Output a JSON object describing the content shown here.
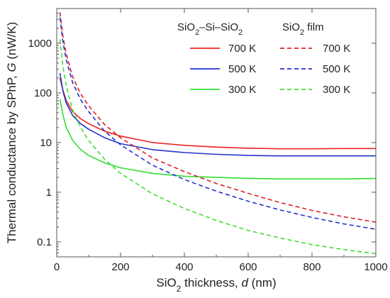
{
  "chart_data": {
    "type": "line",
    "xlabel": {
      "prefix": "SiO",
      "sub": "2",
      "mid": " thickness, ",
      "var": "d",
      "suffix": " (nm)"
    },
    "ylabel": {
      "prefix": "Thermal conductance  by  SPhP, ",
      "var": "G",
      "suffix": " (nW/K)"
    },
    "xlim": [
      0,
      1000
    ],
    "ylim": [
      0.05,
      5000
    ],
    "yscale": "log",
    "x_ticks": [
      0,
      200,
      400,
      600,
      800,
      1000
    ],
    "x_tick_labels": [
      "0",
      "200",
      "400",
      "600",
      "800",
      "1000"
    ],
    "y_ticks": [
      0.1,
      1,
      10,
      100,
      1000
    ],
    "y_tick_labels": [
      "0.1",
      "1",
      "10",
      "100",
      "1000"
    ],
    "grid": false,
    "legend": {
      "placement": "top-right",
      "groups": [
        {
          "title_parts": [
            "SiO",
            "2",
            "–Si–SiO",
            "2"
          ],
          "style": "solid"
        },
        {
          "title_parts": [
            "SiO",
            "2",
            " film",
            ""
          ],
          "style": "dashed"
        }
      ],
      "entries": [
        "700 K",
        "500 K",
        "300 K"
      ]
    },
    "series": [
      {
        "name": "700 K",
        "group": "SiO2–Si–SiO2",
        "style": "solid",
        "color": "#ee2222",
        "x": [
          10,
          20,
          30,
          50,
          75,
          100,
          150,
          200,
          300,
          400,
          500,
          600,
          700,
          800,
          900,
          1000
        ],
        "y": [
          200,
          110,
          70,
          42,
          30,
          24,
          17,
          13.5,
          10,
          8.8,
          8.1,
          7.7,
          7.5,
          7.5,
          7.6,
          7.6
        ]
      },
      {
        "name": "500 K",
        "group": "SiO2–Si–SiO2",
        "style": "solid",
        "color": "#2233cc",
        "x": [
          10,
          20,
          30,
          50,
          75,
          100,
          150,
          200,
          300,
          400,
          500,
          600,
          700,
          800,
          900,
          1000
        ],
        "y": [
          250,
          105,
          62,
          35,
          24,
          18.5,
          12.5,
          9.5,
          7.2,
          6.3,
          5.8,
          5.5,
          5.4,
          5.4,
          5.4,
          5.4
        ]
      },
      {
        "name": "300 K",
        "group": "SiO2–Si–SiO2",
        "style": "solid",
        "color": "#33dd33",
        "x": [
          10,
          20,
          30,
          50,
          75,
          100,
          150,
          200,
          300,
          400,
          500,
          600,
          700,
          800,
          900,
          1000
        ],
        "y": [
          75,
          35,
          20,
          11,
          7.2,
          5.5,
          3.9,
          3.1,
          2.4,
          2.1,
          2.0,
          1.9,
          1.85,
          1.85,
          1.85,
          1.9
        ]
      },
      {
        "name": "700 K",
        "group": "SiO2 film",
        "style": "dashed",
        "color": "#dd2222",
        "x": [
          10,
          20,
          30,
          50,
          75,
          100,
          150,
          200,
          300,
          400,
          500,
          600,
          700,
          800,
          900,
          1000
        ],
        "y": [
          4200,
          1300,
          600,
          210,
          95,
          55,
          23,
          12.5,
          4.9,
          2.6,
          1.5,
          0.95,
          0.62,
          0.43,
          0.32,
          0.25
        ]
      },
      {
        "name": "500 K",
        "group": "SiO2 film",
        "style": "dashed",
        "color": "#2233cc",
        "x": [
          10,
          20,
          30,
          50,
          75,
          100,
          150,
          200,
          300,
          400,
          500,
          600,
          700,
          800,
          900,
          1000
        ],
        "y": [
          3300,
          1000,
          460,
          160,
          73,
          42,
          17,
          9,
          3.5,
          1.8,
          1.05,
          0.66,
          0.44,
          0.31,
          0.23,
          0.18
        ]
      },
      {
        "name": "300 K",
        "group": "SiO2 film",
        "style": "dashed",
        "color": "#44dd33",
        "x": [
          10,
          20,
          30,
          50,
          75,
          100,
          150,
          200,
          300,
          400,
          500,
          600,
          700,
          800,
          900,
          1000
        ],
        "y": [
          1200,
          320,
          135,
          45,
          20,
          11,
          4.6,
          2.4,
          0.93,
          0.47,
          0.27,
          0.17,
          0.12,
          0.088,
          0.07,
          0.058
        ]
      }
    ]
  }
}
